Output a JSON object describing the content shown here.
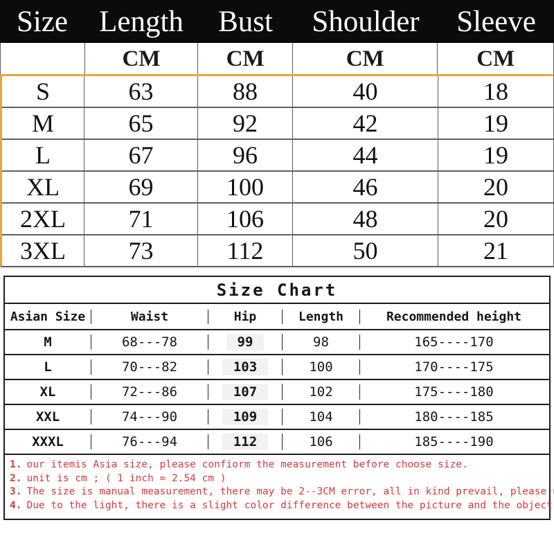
{
  "top_table": {
    "headers": [
      "Size",
      "Length",
      "Bust",
      "Shoulder",
      "Sleeve"
    ],
    "unit": "CM",
    "rows": [
      {
        "size": "S",
        "length": "63",
        "bust": "88",
        "shoulder": "40",
        "sleeve": "18"
      },
      {
        "size": "M",
        "length": "65",
        "bust": "92",
        "shoulder": "42",
        "sleeve": "19"
      },
      {
        "size": "L",
        "length": "67",
        "bust": "96",
        "shoulder": "44",
        "sleeve": "19"
      },
      {
        "size": "XL",
        "length": "69",
        "bust": "100",
        "shoulder": "46",
        "sleeve": "20"
      },
      {
        "size": "2XL",
        "length": "71",
        "bust": "106",
        "shoulder": "48",
        "sleeve": "20"
      },
      {
        "size": "3XL",
        "length": "73",
        "bust": "112",
        "shoulder": "50",
        "sleeve": "21"
      }
    ]
  },
  "size_chart": {
    "title": "Size Chart",
    "headers": [
      "Asian Size",
      "Waist",
      "Hip",
      "Length",
      "Recommended height"
    ],
    "rows": [
      {
        "size": "M",
        "waist": "68---78",
        "hip": "99",
        "length": "98",
        "height": "165----170"
      },
      {
        "size": "L",
        "waist": "70---82",
        "hip": "103",
        "length": "100",
        "height": "170----175"
      },
      {
        "size": "XL",
        "waist": "72---86",
        "hip": "107",
        "length": "102",
        "height": "175----180"
      },
      {
        "size": "XXL",
        "waist": "74---90",
        "hip": "109",
        "length": "104",
        "height": "180----185"
      },
      {
        "size": "XXXL",
        "waist": "76---94",
        "hip": "112",
        "length": "106",
        "height": "185----190"
      }
    ]
  },
  "notes": [
    {
      "num": "1.",
      "text": "our itemis Asia size,  please confiorm the measurement before  choose size."
    },
    {
      "num": "2.",
      "text": "unit is cm ; ( 1 inch = 2.54 cm )"
    },
    {
      "num": "3.",
      "text": "The size is manual measurement, there may be 2--3CM error, all in kind prevail, please understand."
    },
    {
      "num": "4.",
      "text": "Due to the light, there is a slight color difference between the picture and the object."
    }
  ],
  "colors": {
    "header_bg": "#0b0b0b",
    "accent_orange": "#e9a43d",
    "note_red": "#d63a3a",
    "hip_highlight": "#f2f2f2"
  }
}
